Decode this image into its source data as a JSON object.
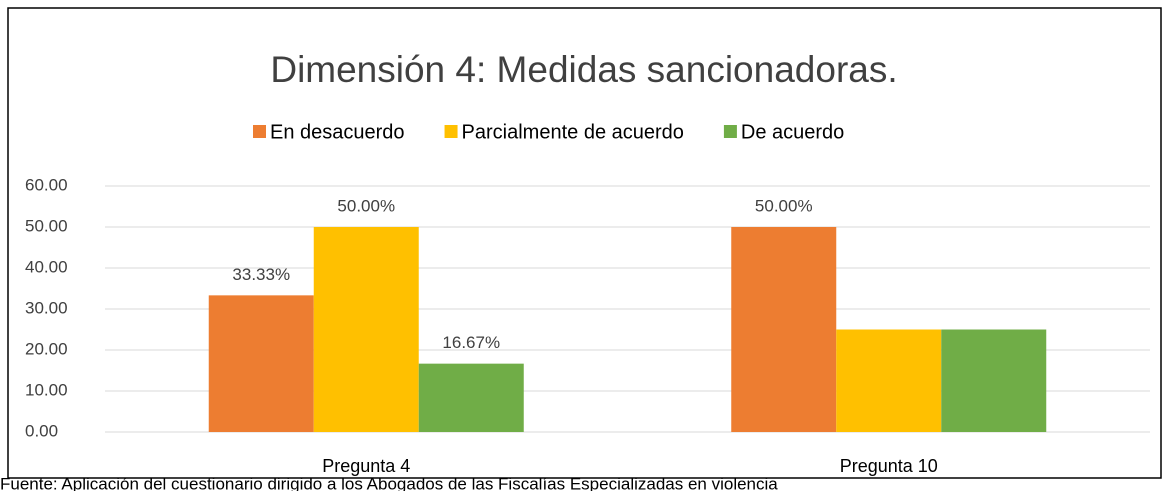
{
  "chart_data": {
    "type": "bar",
    "title": "Dimensión 4: Medidas sancionadoras.",
    "categories": [
      "Pregunta 4",
      "Pregunta 10"
    ],
    "series": [
      {
        "name": "En desacuerdo",
        "color": "#ed7d31",
        "values": [
          33.33,
          50
        ],
        "value_labels": [
          "33.33%",
          "50.00%"
        ]
      },
      {
        "name": "Parcialmente de acuerdo",
        "color": "#ffc000",
        "values": [
          50,
          25
        ],
        "value_labels": [
          "50.00%",
          null
        ]
      },
      {
        "name": "De acuerdo",
        "color": "#70ad47",
        "values": [
          16.67,
          25
        ],
        "value_labels": [
          "16.67%",
          null
        ]
      }
    ],
    "ylim": [
      0,
      60
    ],
    "yticks": [
      {
        "value": 0,
        "label": "0.00"
      },
      {
        "value": 10,
        "label": "10.00"
      },
      {
        "value": 20,
        "label": "20.00"
      },
      {
        "value": 30,
        "label": "30.00"
      },
      {
        "value": 40,
        "label": "40.00"
      },
      {
        "value": 50,
        "label": "50.00"
      },
      {
        "value": 60,
        "label": "60.00"
      }
    ],
    "grid": true,
    "legend": "top"
  },
  "source": "Fuente: Aplicación del cuestionario dirigido a los Abogados de las Fiscalías Especializadas en violencia"
}
